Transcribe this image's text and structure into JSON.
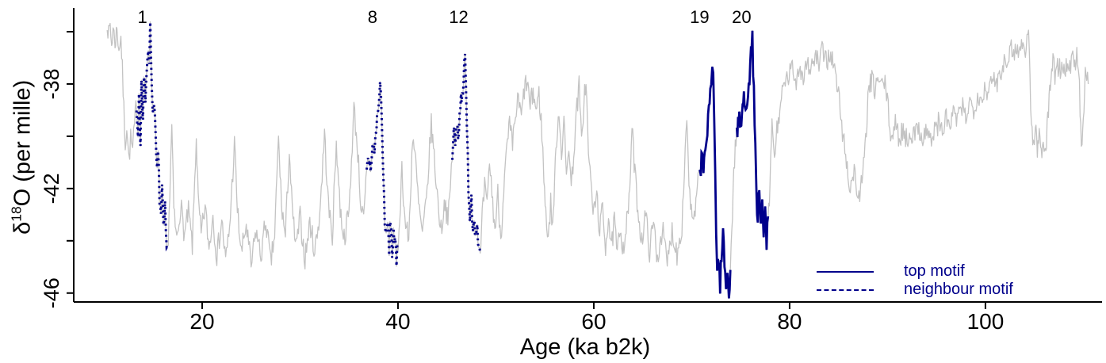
{
  "chart_data": {
    "type": "line",
    "xlabel": "Age (ka b2k)",
    "ylabel": {
      "delta": "δ",
      "sup": "18",
      "rest": "O (per mille)"
    },
    "xlim": [
      7.45,
      111.1
    ],
    "ylim": [
      -46.25,
      -35.09
    ],
    "x_ticks": [
      20,
      40,
      60,
      80,
      100
    ],
    "y_ticks": [
      {
        "value": -36,
        "label": ""
      },
      {
        "value": -38,
        "label": "-38"
      },
      {
        "value": -40,
        "label": ""
      },
      {
        "value": -42,
        "label": "-42"
      },
      {
        "value": -44,
        "label": ""
      },
      {
        "value": -46,
        "label": "-46"
      }
    ],
    "grid": false,
    "legend_position": "bottom-right",
    "colors": {
      "record": "#c3c3c3",
      "motif": "#00008b",
      "axis": "#000000",
      "text": "#000000"
    },
    "noise": {
      "amplitude": 0.45,
      "step_ka": 0.08,
      "seed": 7
    },
    "series": [
      [
        10.3,
        -35.5
      ],
      [
        10.45,
        -36.2
      ],
      [
        10.6,
        -35.7
      ],
      [
        10.75,
        -36.5
      ],
      [
        10.9,
        -35.9
      ],
      [
        11.1,
        -36.4
      ],
      [
        11.3,
        -35.9
      ],
      [
        11.5,
        -36.6
      ],
      [
        11.7,
        -36.2
      ],
      [
        11.85,
        -37.5
      ],
      [
        12.0,
        -39.0
      ],
      [
        12.15,
        -40.2
      ],
      [
        12.3,
        -39.6
      ],
      [
        12.5,
        -40.9
      ],
      [
        12.7,
        -40.1
      ],
      [
        12.9,
        -40.6
      ],
      [
        13.1,
        -39.6
      ],
      [
        13.3,
        -38.6
      ],
      [
        13.45,
        -39.9
      ],
      [
        13.55,
        -38.3
      ],
      [
        13.7,
        -40.0
      ],
      [
        13.8,
        -38.1
      ],
      [
        13.95,
        -39.3
      ],
      [
        14.05,
        -37.7
      ],
      [
        14.2,
        -38.9
      ],
      [
        14.35,
        -37.3
      ],
      [
        14.5,
        -36.4
      ],
      [
        14.6,
        -36.9
      ],
      [
        14.7,
        -36.0
      ],
      [
        14.85,
        -37.8
      ],
      [
        14.95,
        -39.2
      ],
      [
        15.1,
        -38.4
      ],
      [
        15.25,
        -40.3
      ],
      [
        15.4,
        -41.5
      ],
      [
        15.5,
        -40.7
      ],
      [
        15.65,
        -42.3
      ],
      [
        15.8,
        -43.1
      ],
      [
        15.9,
        -42.2
      ],
      [
        16.05,
        -43.7
      ],
      [
        16.2,
        -42.9
      ],
      [
        16.3,
        -44.1
      ],
      [
        16.45,
        -44.5
      ],
      [
        16.7,
        -42.2
      ],
      [
        16.9,
        -39.6
      ],
      [
        17.1,
        -42.8
      ],
      [
        17.4,
        -44.0
      ],
      [
        17.8,
        -42.6
      ],
      [
        18.2,
        -43.8
      ],
      [
        18.6,
        -42.9
      ],
      [
        19.0,
        -44.2
      ],
      [
        19.4,
        -40.0
      ],
      [
        19.6,
        -42.5
      ],
      [
        19.9,
        -43.8
      ],
      [
        20.3,
        -42.7
      ],
      [
        20.7,
        -44.3
      ],
      [
        21.1,
        -43.0
      ],
      [
        21.5,
        -44.6
      ],
      [
        22.0,
        -43.2
      ],
      [
        22.4,
        -44.8
      ],
      [
        22.8,
        -43.5
      ],
      [
        23.3,
        -40.3
      ],
      [
        23.6,
        -42.8
      ],
      [
        24.0,
        -44.5
      ],
      [
        24.5,
        -43.4
      ],
      [
        25.0,
        -45.0
      ],
      [
        25.5,
        -43.6
      ],
      [
        26.0,
        -44.6
      ],
      [
        26.5,
        -43.2
      ],
      [
        27.0,
        -44.9
      ],
      [
        27.4,
        -43.8
      ],
      [
        27.8,
        -40.1
      ],
      [
        28.1,
        -42.6
      ],
      [
        28.5,
        -43.9
      ],
      [
        28.9,
        -40.5
      ],
      [
        29.2,
        -42.9
      ],
      [
        29.6,
        -44.3
      ],
      [
        30.0,
        -43.1
      ],
      [
        30.5,
        -44.7
      ],
      [
        31.0,
        -43.3
      ],
      [
        31.5,
        -44.4
      ],
      [
        32.0,
        -43.0
      ],
      [
        32.5,
        -39.9
      ],
      [
        32.9,
        -42.7
      ],
      [
        33.3,
        -43.8
      ],
      [
        33.7,
        -40.2
      ],
      [
        34.1,
        -42.8
      ],
      [
        34.5,
        -43.9
      ],
      [
        35.0,
        -42.9
      ],
      [
        35.5,
        -38.9
      ],
      [
        35.9,
        -40.6
      ],
      [
        36.2,
        -42.6
      ],
      [
        36.5,
        -43.3
      ],
      [
        36.8,
        -41.4
      ],
      [
        37.0,
        -40.8
      ],
      [
        37.2,
        -41.2
      ],
      [
        37.4,
        -40.3
      ],
      [
        37.6,
        -40.6
      ],
      [
        37.8,
        -39.6
      ],
      [
        38.0,
        -38.9
      ],
      [
        38.1,
        -38.4
      ],
      [
        38.25,
        -38.0
      ],
      [
        38.35,
        -39.5
      ],
      [
        38.5,
        -41.6
      ],
      [
        38.65,
        -43.0
      ],
      [
        38.8,
        -44.1
      ],
      [
        38.95,
        -43.3
      ],
      [
        39.1,
        -44.4
      ],
      [
        39.25,
        -43.0
      ],
      [
        39.4,
        -44.6
      ],
      [
        39.55,
        -43.5
      ],
      [
        39.7,
        -44.2
      ],
      [
        39.85,
        -45.0
      ],
      [
        40.1,
        -43.6
      ],
      [
        40.4,
        -41.2
      ],
      [
        40.7,
        -43.2
      ],
      [
        41.1,
        -44.0
      ],
      [
        41.5,
        -39.9
      ],
      [
        41.8,
        -41.0
      ],
      [
        42.1,
        -42.6
      ],
      [
        42.5,
        -43.8
      ],
      [
        42.9,
        -42.5
      ],
      [
        43.4,
        -39.5
      ],
      [
        43.7,
        -40.8
      ],
      [
        44.0,
        -42.2
      ],
      [
        44.4,
        -43.6
      ],
      [
        44.8,
        -42.4
      ],
      [
        45.1,
        -43.4
      ],
      [
        45.35,
        -41.9
      ],
      [
        45.55,
        -40.7
      ],
      [
        45.7,
        -39.8
      ],
      [
        45.85,
        -40.4
      ],
      [
        46.0,
        -39.5
      ],
      [
        46.15,
        -39.9
      ],
      [
        46.3,
        -39.0
      ],
      [
        46.5,
        -38.4
      ],
      [
        46.7,
        -37.8
      ],
      [
        46.85,
        -37.2
      ],
      [
        46.95,
        -38.3
      ],
      [
        47.05,
        -40.0
      ],
      [
        47.2,
        -41.8
      ],
      [
        47.35,
        -43.0
      ],
      [
        47.5,
        -42.2
      ],
      [
        47.65,
        -43.6
      ],
      [
        47.8,
        -42.8
      ],
      [
        47.95,
        -43.9
      ],
      [
        48.1,
        -43.2
      ],
      [
        48.25,
        -44.2
      ],
      [
        48.4,
        -44.8
      ],
      [
        48.6,
        -43.2
      ],
      [
        48.85,
        -41.9
      ],
      [
        49.1,
        -42.8
      ],
      [
        49.35,
        -40.9
      ],
      [
        49.6,
        -42.2
      ],
      [
        49.9,
        -43.6
      ],
      [
        50.2,
        -42.2
      ],
      [
        50.5,
        -43.9
      ],
      [
        50.8,
        -42.0
      ],
      [
        51.1,
        -40.6
      ],
      [
        51.4,
        -39.6
      ],
      [
        51.7,
        -40.4
      ],
      [
        52.0,
        -39.2
      ],
      [
        52.3,
        -38.6
      ],
      [
        52.6,
        -39.3
      ],
      [
        52.9,
        -38.2
      ],
      [
        53.2,
        -37.9
      ],
      [
        53.5,
        -38.9
      ],
      [
        53.8,
        -38.3
      ],
      [
        54.1,
        -39.0
      ],
      [
        54.4,
        -38.4
      ],
      [
        54.7,
        -39.8
      ],
      [
        54.9,
        -41.6
      ],
      [
        55.1,
        -43.0
      ],
      [
        55.35,
        -43.8
      ],
      [
        55.6,
        -42.6
      ],
      [
        55.8,
        -43.4
      ],
      [
        56.0,
        -41.8
      ],
      [
        56.2,
        -40.0
      ],
      [
        56.45,
        -39.0
      ],
      [
        56.7,
        -40.6
      ],
      [
        56.95,
        -39.4
      ],
      [
        57.2,
        -41.6
      ],
      [
        57.45,
        -40.2
      ],
      [
        57.7,
        -42.0
      ],
      [
        57.95,
        -40.6
      ],
      [
        58.2,
        -39.2
      ],
      [
        58.5,
        -38.1
      ],
      [
        58.75,
        -40.3
      ],
      [
        59.0,
        -38.5
      ],
      [
        59.2,
        -37.9
      ],
      [
        59.45,
        -40.6
      ],
      [
        59.7,
        -41.8
      ],
      [
        60.0,
        -43.0
      ],
      [
        60.3,
        -42.2
      ],
      [
        60.6,
        -43.6
      ],
      [
        60.9,
        -42.8
      ],
      [
        61.2,
        -44.2
      ],
      [
        61.5,
        -43.0
      ],
      [
        61.8,
        -44.4
      ],
      [
        62.1,
        -43.2
      ],
      [
        62.4,
        -44.6
      ],
      [
        62.7,
        -43.4
      ],
      [
        63.0,
        -44.3
      ],
      [
        63.3,
        -43.5
      ],
      [
        63.6,
        -42.6
      ],
      [
        63.9,
        -39.7
      ],
      [
        64.2,
        -41.4
      ],
      [
        64.5,
        -42.8
      ],
      [
        64.9,
        -44.0
      ],
      [
        65.3,
        -43.0
      ],
      [
        65.7,
        -44.4
      ],
      [
        66.1,
        -43.3
      ],
      [
        66.5,
        -44.7
      ],
      [
        67.0,
        -43.5
      ],
      [
        67.5,
        -44.9
      ],
      [
        68.0,
        -43.6
      ],
      [
        68.5,
        -44.5
      ],
      [
        69.0,
        -43.4
      ],
      [
        69.5,
        -39.2
      ],
      [
        69.8,
        -42.4
      ],
      [
        70.2,
        -43.5
      ],
      [
        70.5,
        -42.3
      ],
      [
        70.8,
        -41.4
      ],
      [
        71.0,
        -40.9
      ],
      [
        71.2,
        -41.2
      ],
      [
        71.4,
        -40.3
      ],
      [
        71.6,
        -39.9
      ],
      [
        71.75,
        -39.2
      ],
      [
        71.9,
        -38.4
      ],
      [
        72.0,
        -37.9
      ],
      [
        72.1,
        -37.4
      ],
      [
        72.2,
        -37.2
      ],
      [
        72.3,
        -39.0
      ],
      [
        72.4,
        -41.5
      ],
      [
        72.5,
        -43.6
      ],
      [
        72.6,
        -45.2
      ],
      [
        72.75,
        -44.6
      ],
      [
        72.9,
        -45.6
      ],
      [
        73.05,
        -44.8
      ],
      [
        73.2,
        -43.6
      ],
      [
        73.35,
        -44.9
      ],
      [
        73.5,
        -45.8
      ],
      [
        73.65,
        -45.1
      ],
      [
        73.8,
        -46.0
      ],
      [
        73.95,
        -45.2
      ],
      [
        74.1,
        -43.4
      ],
      [
        74.3,
        -41.6
      ],
      [
        74.45,
        -40.2
      ],
      [
        74.6,
        -39.9
      ],
      [
        74.8,
        -39.4
      ],
      [
        75.0,
        -39.7
      ],
      [
        75.2,
        -38.9
      ],
      [
        75.4,
        -38.5
      ],
      [
        75.6,
        -38.8
      ],
      [
        75.75,
        -38.1
      ],
      [
        75.9,
        -37.6
      ],
      [
        76.05,
        -37.0
      ],
      [
        76.2,
        -36.4
      ],
      [
        76.35,
        -38.2
      ],
      [
        76.5,
        -40.6
      ],
      [
        76.6,
        -42.2
      ],
      [
        76.75,
        -43.0
      ],
      [
        76.9,
        -42.3
      ],
      [
        77.05,
        -43.6
      ],
      [
        77.2,
        -42.8
      ],
      [
        77.35,
        -43.8
      ],
      [
        77.5,
        -42.9
      ],
      [
        77.65,
        -44.0
      ],
      [
        77.8,
        -43.4
      ],
      [
        78.0,
        -42.0
      ],
      [
        78.2,
        -39.3
      ],
      [
        78.45,
        -40.9
      ],
      [
        78.7,
        -39.8
      ],
      [
        79.0,
        -38.9
      ],
      [
        79.4,
        -38.2
      ],
      [
        79.8,
        -37.8
      ],
      [
        80.2,
        -37.4
      ],
      [
        80.6,
        -37.9
      ],
      [
        81.0,
        -37.3
      ],
      [
        81.4,
        -37.7
      ],
      [
        81.8,
        -37.1
      ],
      [
        82.2,
        -37.5
      ],
      [
        82.6,
        -36.9
      ],
      [
        83.0,
        -37.3
      ],
      [
        83.4,
        -36.7
      ],
      [
        83.8,
        -37.1
      ],
      [
        84.2,
        -36.8
      ],
      [
        84.6,
        -37.5
      ],
      [
        85.0,
        -38.4
      ],
      [
        85.4,
        -39.8
      ],
      [
        85.8,
        -41.0
      ],
      [
        86.2,
        -42.0
      ],
      [
        86.6,
        -41.3
      ],
      [
        87.0,
        -42.4
      ],
      [
        87.4,
        -41.8
      ],
      [
        87.7,
        -40.6
      ],
      [
        87.9,
        -39.2
      ],
      [
        88.1,
        -38.2
      ],
      [
        88.4,
        -37.9
      ],
      [
        88.7,
        -38.2
      ],
      [
        89.0,
        -37.8
      ],
      [
        89.3,
        -38.1
      ],
      [
        89.6,
        -37.9
      ],
      [
        89.9,
        -38.3
      ],
      [
        90.15,
        -39.4
      ],
      [
        90.4,
        -40.0
      ],
      [
        90.8,
        -39.6
      ],
      [
        91.2,
        -40.1
      ],
      [
        91.6,
        -39.7
      ],
      [
        92.0,
        -40.2
      ],
      [
        92.4,
        -39.8
      ],
      [
        92.8,
        -40.0
      ],
      [
        93.2,
        -39.6
      ],
      [
        93.6,
        -40.1
      ],
      [
        94.0,
        -39.7
      ],
      [
        94.4,
        -40.2
      ],
      [
        94.8,
        -39.8
      ],
      [
        95.2,
        -39.5
      ],
      [
        95.6,
        -39.8
      ],
      [
        96.0,
        -39.3
      ],
      [
        96.4,
        -39.6
      ],
      [
        96.8,
        -39.1
      ],
      [
        97.2,
        -39.4
      ],
      [
        97.6,
        -38.9
      ],
      [
        98.0,
        -39.2
      ],
      [
        98.4,
        -38.7
      ],
      [
        98.8,
        -38.9
      ],
      [
        99.2,
        -38.4
      ],
      [
        99.6,
        -38.6
      ],
      [
        100.0,
        -38.1
      ],
      [
        100.4,
        -38.3
      ],
      [
        100.8,
        -37.8
      ],
      [
        101.2,
        -37.9
      ],
      [
        101.6,
        -37.4
      ],
      [
        102.0,
        -37.1
      ],
      [
        102.4,
        -36.8
      ],
      [
        102.8,
        -36.6
      ],
      [
        103.2,
        -36.8
      ],
      [
        103.6,
        -36.5
      ],
      [
        104.0,
        -36.7
      ],
      [
        104.25,
        -36.3
      ],
      [
        104.4,
        -35.9
      ],
      [
        104.55,
        -37.8
      ],
      [
        104.7,
        -39.6
      ],
      [
        104.9,
        -40.3
      ],
      [
        105.1,
        -39.7
      ],
      [
        105.3,
        -40.5
      ],
      [
        105.5,
        -39.9
      ],
      [
        105.7,
        -40.6
      ],
      [
        105.9,
        -40.1
      ],
      [
        106.1,
        -40.5
      ],
      [
        106.3,
        -39.8
      ],
      [
        106.5,
        -38.6
      ],
      [
        106.7,
        -37.6
      ],
      [
        106.9,
        -37.2
      ],
      [
        107.1,
        -37.6
      ],
      [
        107.3,
        -37.1
      ],
      [
        107.5,
        -37.5
      ],
      [
        107.8,
        -37.2
      ],
      [
        108.1,
        -37.6
      ],
      [
        108.4,
        -37.1
      ],
      [
        108.7,
        -37.4
      ],
      [
        109.0,
        -37.0
      ],
      [
        109.2,
        -37.3
      ],
      [
        109.4,
        -36.9
      ],
      [
        109.6,
        -38.2
      ],
      [
        109.8,
        -40.2
      ],
      [
        110.0,
        -39.6
      ],
      [
        110.2,
        -37.8
      ],
      [
        110.35,
        -37.5
      ],
      [
        110.5,
        -38.0
      ]
    ],
    "motifs": [
      {
        "label": "1",
        "start_age": 13.25,
        "end_age": 16.5,
        "style": "dashed",
        "label_age": 13.9
      },
      {
        "label": "8",
        "start_age": 36.75,
        "end_age": 39.95,
        "style": "dashed",
        "label_age": 37.4
      },
      {
        "label": "12",
        "start_age": 45.5,
        "end_age": 48.45,
        "style": "dashed",
        "label_age": 46.2
      },
      {
        "label": "19",
        "start_age": 70.75,
        "end_age": 74.0,
        "style": "solid",
        "label_age": 70.8
      },
      {
        "label": "20",
        "start_age": 74.55,
        "end_age": 77.85,
        "style": "solid",
        "label_age": 75.1
      }
    ],
    "legend": {
      "entries": [
        {
          "label": "top motif",
          "style": "solid"
        },
        {
          "label": "neighbour motif",
          "style": "dashed"
        }
      ]
    }
  }
}
